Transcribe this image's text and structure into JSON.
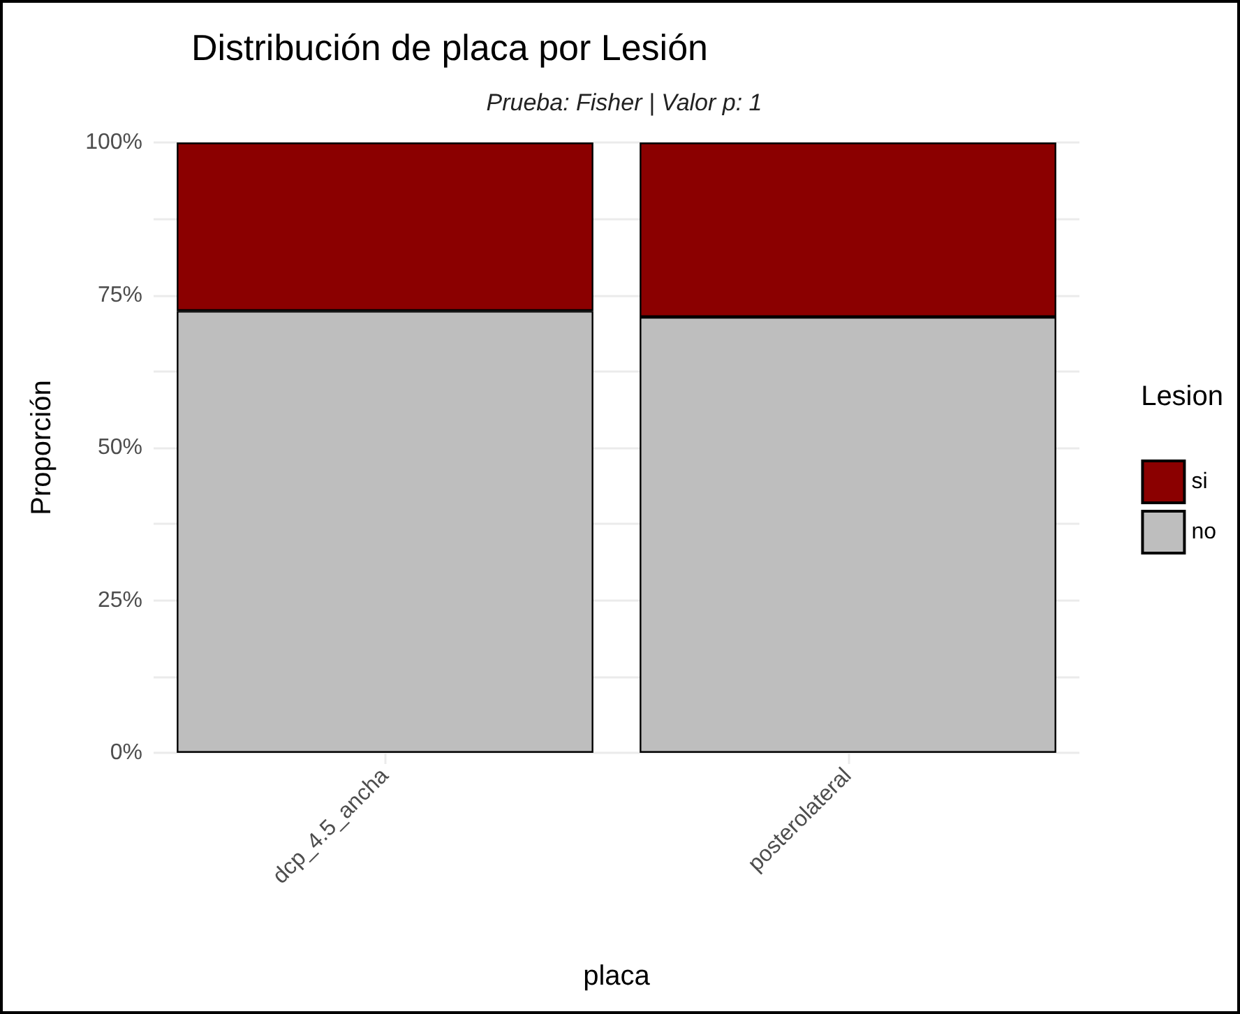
{
  "chart_data": {
    "type": "bar",
    "title": "Distribución de placa por Lesión",
    "subtitle": "Prueba: Fisher | Valor p: 1",
    "xlabel": "placa",
    "ylabel": "Proporción",
    "legend_title": "Lesion",
    "categories": [
      "dcp_4.5_ancha",
      "posterolateral"
    ],
    "series": [
      {
        "name": "no",
        "color": "#bebebe",
        "values": [
          72.4,
          71.4
        ]
      },
      {
        "name": "si",
        "color": "#8b0000",
        "values": [
          27.6,
          28.6
        ]
      }
    ],
    "stacked": true,
    "ylim": [
      0,
      100
    ],
    "yticks": [
      {
        "value": 0,
        "label": "0%"
      },
      {
        "value": 12.5,
        "label": null
      },
      {
        "value": 25,
        "label": "25%"
      },
      {
        "value": 37.5,
        "label": null
      },
      {
        "value": 50,
        "label": "50%"
      },
      {
        "value": 62.5,
        "label": null
      },
      {
        "value": 75,
        "label": "75%"
      },
      {
        "value": 87.5,
        "label": null
      },
      {
        "value": 100,
        "label": "100%"
      }
    ],
    "grid": "y",
    "legend": "right"
  }
}
